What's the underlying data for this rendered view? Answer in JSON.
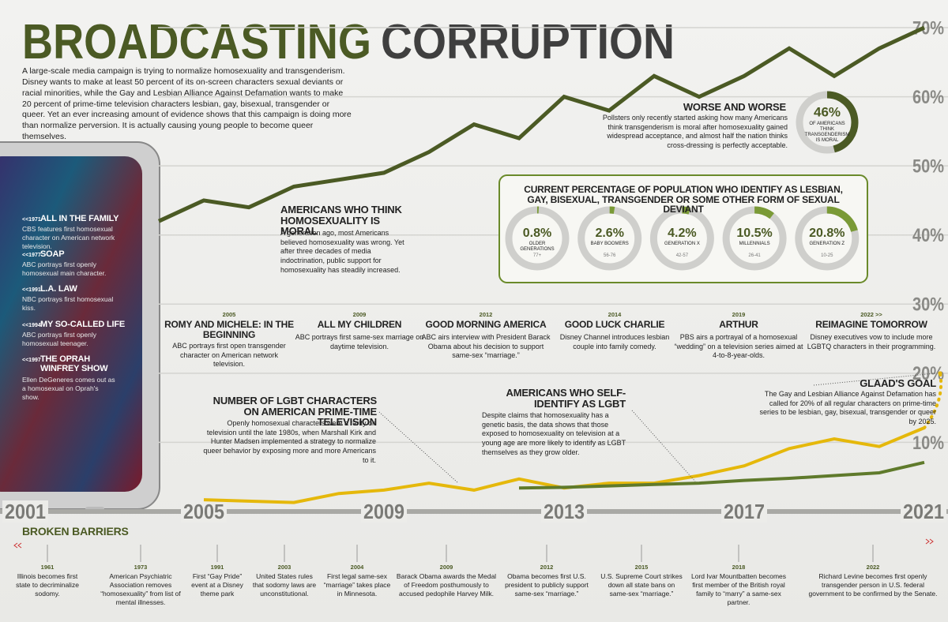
{
  "header": {
    "title_1": "BROADCASTING",
    "title_2": "CORRUPTION",
    "intro": "A large-scale media campaign is trying to normalize homosexuality and transgenderism. Disney wants to make at least 50 percent of its on-screen characters sexual deviants or racial minorities, while the Gay and Lesbian Alliance Against Defamation wants to make 20 percent of prime-time television characters lesbian, gay, bisexual, transgender or queer. Yet an ever increasing amount of evidence shows that this campaign is doing more than normalize perversion. It is actually causing young people to become queer themselves."
  },
  "tv_milestones": [
    {
      "year": "<<1971",
      "title": "ALL IN THE FAMILY",
      "text": "CBS features first homosexual character on American network television."
    },
    {
      "year": "<<1977",
      "title": "SOAP",
      "text": "ABC portrays first openly homosexual main character."
    },
    {
      "year": "<<1991",
      "title": "L.A. LAW",
      "text": "NBC portrays first homosexual kiss."
    },
    {
      "year": "<<1994",
      "title": "MY SO-CALLED LIFE",
      "text": "ABC portrays first openly homosexual teenager."
    },
    {
      "year": "<<1997",
      "title": "THE OPRAH WINFREY SHOW",
      "text": "Ellen DeGeneres comes out as a homosexual on Oprah's show."
    }
  ],
  "chart_data": [
    {
      "type": "line",
      "x": [
        2004,
        2005,
        2006,
        2007,
        2008,
        2009,
        2010,
        2011,
        2012,
        2013,
        2014,
        2015,
        2016,
        2017,
        2018,
        2019,
        2020,
        2021
      ],
      "xlim": [
        2001,
        2021
      ],
      "xticks": [
        2001,
        2005,
        2009,
        2013,
        2017,
        2021
      ],
      "ylim": [
        0,
        70
      ],
      "yticks": [
        {
          "value": 10,
          "label": "10%"
        },
        {
          "value": 20,
          "label": "20%"
        },
        {
          "value": 30,
          "label": "30%"
        },
        {
          "value": 40,
          "label": "40%"
        },
        {
          "value": 50,
          "label": "50%"
        },
        {
          "value": 60,
          "label": "60%"
        },
        {
          "value": 70,
          "label": "70%"
        }
      ],
      "grid": true,
      "series": [
        {
          "name": "AMERICANS WHO THINK HOMOSEXUALITY IS MORAL",
          "color": "#4b5a24",
          "description": "A generation ago, most Americans believed homosexuality was wrong. Yet after three decades of media indoctrination, public support for homosexuality has steadily increased.",
          "values": [
            42,
            45,
            44,
            47,
            48,
            49,
            52,
            56,
            54,
            60,
            58,
            63,
            60,
            63,
            67,
            63,
            67,
            70
          ]
        },
        {
          "name": "NUMBER OF LGBT CHARACTERS ON AMERICAN PRIME-TIME TELEVISION",
          "color": "#e5b80b",
          "description": "Openly homosexual characters were a rarity on television until the late 1980s, when Marshall Kirk and Hunter Madsen implemented a strategy to normalize queer behavior by exposing more and more Americans to it.",
          "values": [
            null,
            1.7,
            1.5,
            1.3,
            2.6,
            3.1,
            4.1,
            3.1,
            4.7,
            3.4,
            4.1,
            4.1,
            5.2,
            6.6,
            9.1,
            10.5,
            9.4,
            12.1
          ]
        },
        {
          "name": "AMERICANS WHO SELF-IDENTIFY AS LGBT",
          "color": "#5f7a2b",
          "description": "Despite claims that homosexuality has a genetic basis, the data shows that those exposed to homosexuality on television at a young age are more likely to identify as LGBT themselves as they grow older.",
          "values": [
            null,
            null,
            null,
            null,
            null,
            null,
            null,
            null,
            3.4,
            3.5,
            3.7,
            3.9,
            4.1,
            4.5,
            4.8,
            5.2,
            5.6,
            7.1
          ]
        }
      ],
      "goal": 20,
      "goal_title": "GLAAD'S GOAL",
      "goal_text": "The Gay and Lesbian Alliance Against Defamation has called for 20% of all regular characters on prime-time series to be lesbian, gay, bisexual, transgender or queer by 2025."
    },
    {
      "type": "donut",
      "title": "CURRENT PERCENTAGE OF POPULATION WHO IDENTIFY AS LESBIAN, GAY, BISEXUAL, TRANSGENDER OR SOME OTHER FORM OF SEXUAL DEVIANT",
      "color": "#7a9a36",
      "categories": [
        "OLDER GENERATIONS",
        "BABY BOOMERS",
        "GENERATION X",
        "MILLENNIALS",
        "GENERATION Z"
      ],
      "ages": [
        "77+",
        "56-76",
        "42-57",
        "26-41",
        "10-25"
      ],
      "values": [
        0.8,
        2.6,
        4.2,
        10.5,
        20.8
      ],
      "value_labels": [
        "0.8%",
        "2.6%",
        "4.2%",
        "10.5%",
        "20.8%"
      ]
    },
    {
      "type": "donut",
      "title": "WORSE AND WORSE",
      "text": "Pollsters only recently started asking how many Americans think transgenderism is moral after homosexuality gained widespread acceptance, and almost half the nation thinks cross-dressing is perfectly acceptable.",
      "color": "#4b5a24",
      "categories": [
        "OF AMERICANS THINK TRANSGENDERISM IS MORAL"
      ],
      "values": [
        46
      ],
      "value_labels": [
        "46%"
      ]
    }
  ],
  "timeline": [
    {
      "year": "2005",
      "title": "ROMY AND MICHELE: IN THE BEGINNING",
      "text": "ABC portrays first open transgender character on American network television."
    },
    {
      "year": "2009",
      "title": "ALL MY CHILDREN",
      "text": "ABC portrays first same-sex marriage on daytime television."
    },
    {
      "year": "2012",
      "title": "GOOD MORNING AMERICA",
      "text": "ABC airs interview with President Barack Obama about his decision to support same-sex “marriage.”"
    },
    {
      "year": "2014",
      "title": "GOOD LUCK CHARLIE",
      "text": "Disney Channel introduces lesbian couple into family comedy."
    },
    {
      "year": "2019",
      "title": "ARTHUR",
      "text": "PBS airs a portrayal of a homosexual “wedding” on a television series aimed at 4-to-8-year-olds."
    },
    {
      "year": "2022 >>",
      "title": "REIMAGINE TOMORROW",
      "text": "Disney executives vow to include more LGBTQ characters in their programming."
    }
  ],
  "broken_barriers": {
    "title": "BROKEN BARRIERS",
    "events": [
      {
        "year": "1961",
        "text": "Illinois becomes first state to decriminalize sodomy."
      },
      {
        "year": "1973",
        "text": "American Psychiatric Association removes “homosexuality” from list of mental illnesses."
      },
      {
        "year": "1991",
        "text": "First “Gay Pride” event at a Disney theme park"
      },
      {
        "year": "2003",
        "text": "United States rules that sodomy laws are unconstitutional."
      },
      {
        "year": "2004",
        "text": "First legal same-sex “marriage” takes place in Minnesota."
      },
      {
        "year": "2009",
        "text": "Barack Obama awards the Medal of Freedom posthumously to accused pedophile Harvey Milk."
      },
      {
        "year": "2012",
        "text": "Obama becomes first U.S. president to publicly support same-sex “marriage.”"
      },
      {
        "year": "2015",
        "text": "U.S. Supreme Court strikes down all state bans on same-sex “marriage.”"
      },
      {
        "year": "2018",
        "text": "Lord Ivar Mountbatten becomes first member of the British royal family to “marry” a same-sex partner."
      },
      {
        "year": "2022",
        "text": "Richard Levine becomes first openly transgender person in U.S. federal government to be confirmed by the Senate."
      }
    ]
  }
}
